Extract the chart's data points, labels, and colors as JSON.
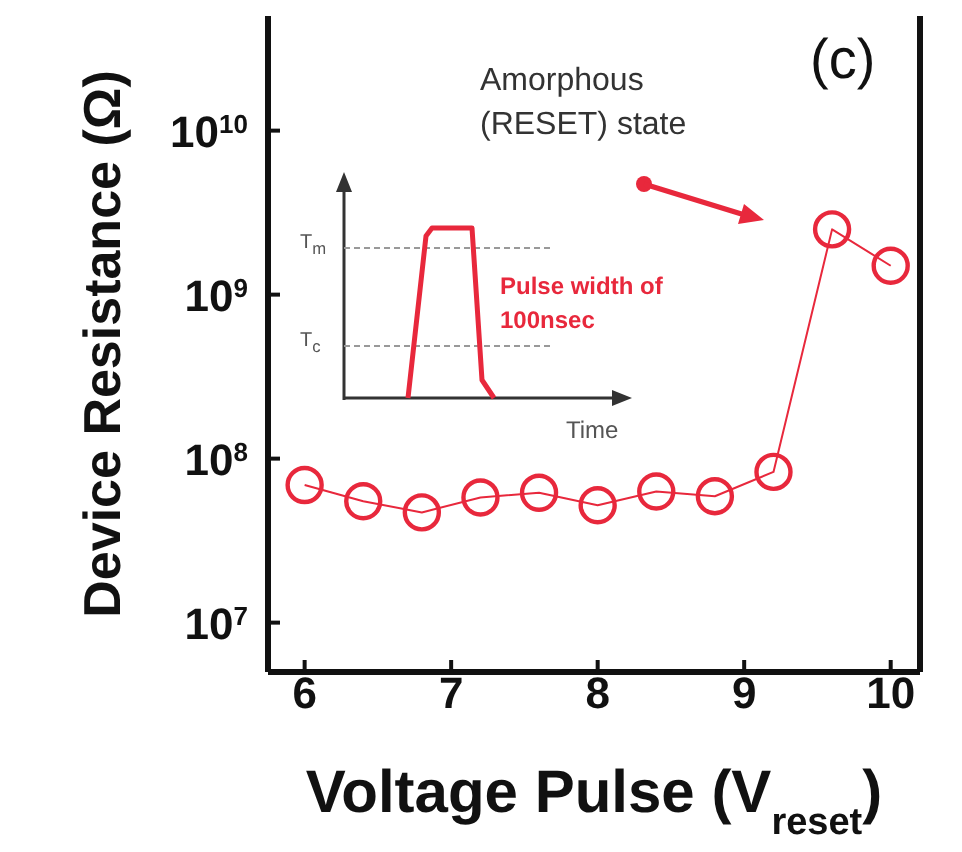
{
  "chart_data": {
    "type": "line",
    "xlabel": "Voltage Pulse (V$_{reset}$)",
    "ylabel": "Device Resistance (Ω)",
    "x": [
      6,
      6.4,
      6.8,
      7.2,
      7.6,
      8,
      8.4,
      8.8,
      9.2,
      9.6,
      10
    ],
    "series": [
      {
        "color": "#e8283c",
        "values": [
          69000000,
          55000000,
          47000000,
          58000000,
          62000000,
          52000000,
          63000000,
          59000000,
          83000000,
          2500000000,
          1500000000
        ]
      }
    ],
    "log": "y",
    "xlim": [
      5.75,
      10.2
    ],
    "xticks": [
      6,
      7,
      8,
      9,
      10
    ],
    "ylim": [
      5000000,
      50000000000
    ],
    "yticks": [
      {
        "value": 10000000,
        "label": "10$^{7}$"
      },
      {
        "value": 100000000,
        "label": "10$^{8}$"
      },
      {
        "value": 1000000000,
        "label": "10$^{9}$"
      },
      {
        "value": 10000000000,
        "label": "10$^{10}$"
      }
    ],
    "marker": "circle",
    "line_style": "solid",
    "annotations": [
      "(c)",
      "Amorphous (RESET) state",
      "Pulse width of 100nsec",
      "T$_{m}$",
      "T$_{c}$",
      "Time"
    ]
  }
}
